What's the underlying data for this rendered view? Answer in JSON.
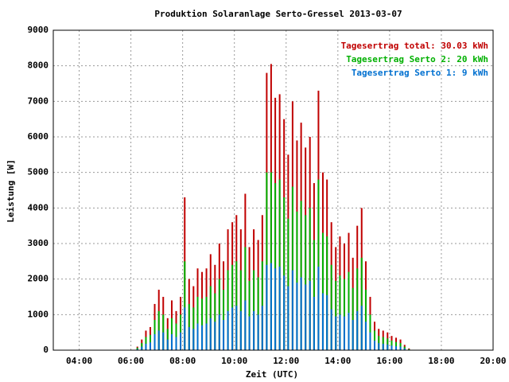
{
  "chart_data": {
    "type": "bar",
    "title": "Produktion Solaranlage Serto-Gressel 2013-03-07",
    "xlabel": "Zeit (UTC)",
    "ylabel": "Leistung [W]",
    "xlim": [
      3,
      20
    ],
    "ylim": [
      0,
      9000
    ],
    "xticks": [
      {
        "value": 4,
        "label": "04:00"
      },
      {
        "value": 6,
        "label": "06:00"
      },
      {
        "value": 8,
        "label": "08:00"
      },
      {
        "value": 10,
        "label": "10:00"
      },
      {
        "value": 12,
        "label": "12:00"
      },
      {
        "value": 14,
        "label": "14:00"
      },
      {
        "value": 16,
        "label": "16:00"
      },
      {
        "value": 18,
        "label": "18:00"
      },
      {
        "value": 20,
        "label": "20:00"
      }
    ],
    "yticks": [
      0,
      1000,
      2000,
      3000,
      4000,
      5000,
      6000,
      7000,
      8000,
      9000
    ],
    "grid": true,
    "legend": "top-right",
    "x": [
      6.25,
      6.42,
      6.58,
      6.75,
      6.92,
      7.08,
      7.25,
      7.42,
      7.58,
      7.75,
      7.92,
      8.08,
      8.25,
      8.42,
      8.58,
      8.75,
      8.92,
      9.08,
      9.25,
      9.42,
      9.58,
      9.75,
      9.92,
      10.08,
      10.25,
      10.42,
      10.58,
      10.75,
      10.92,
      11.08,
      11.25,
      11.42,
      11.58,
      11.75,
      11.92,
      12.08,
      12.25,
      12.42,
      12.58,
      12.75,
      12.92,
      13.08,
      13.25,
      13.42,
      13.58,
      13.75,
      13.92,
      14.08,
      14.25,
      14.42,
      14.58,
      14.75,
      14.92,
      15.08,
      15.25,
      15.42,
      15.58,
      15.75,
      15.92,
      16.08,
      16.25,
      16.42,
      16.58,
      16.75
    ],
    "series": [
      {
        "name": "Tagesertrag total: 30.03 kWh",
        "color": "#c00000",
        "values": [
          100,
          300,
          550,
          650,
          1300,
          1700,
          1500,
          900,
          1400,
          1100,
          1500,
          4300,
          2000,
          1800,
          2300,
          2200,
          2300,
          2700,
          2400,
          3000,
          2500,
          3400,
          3600,
          3800,
          3400,
          4400,
          2900,
          3400,
          3100,
          3800,
          7800,
          8050,
          7100,
          7200,
          6500,
          5500,
          7000,
          5900,
          6400,
          5700,
          6000,
          4700,
          7300,
          5000,
          4800,
          3600,
          2900,
          3200,
          3000,
          3300,
          2600,
          3500,
          4000,
          2500,
          1500,
          800,
          600,
          550,
          500,
          400,
          350,
          300,
          150,
          50
        ]
      },
      {
        "name": "Tagesertrag Serto 2: 20 kWh",
        "color": "#00b000",
        "values": [
          70,
          200,
          370,
          430,
          850,
          1100,
          1000,
          600,
          900,
          750,
          1000,
          2500,
          1300,
          1200,
          1500,
          1450,
          1500,
          1800,
          1600,
          2000,
          1700,
          2250,
          2400,
          2500,
          2250,
          2900,
          1950,
          2250,
          2050,
          2500,
          5000,
          5000,
          4700,
          4800,
          4300,
          3700,
          4600,
          3900,
          4200,
          3800,
          4000,
          3100,
          4800,
          3300,
          3200,
          2400,
          1950,
          2100,
          2000,
          2200,
          1750,
          2300,
          2600,
          1700,
          1000,
          550,
          400,
          370,
          330,
          270,
          230,
          200,
          100,
          30
        ]
      },
      {
        "name": "Tagesertrag Serto 1: 9 kWh",
        "color": "#0070d0",
        "values": [
          30,
          100,
          180,
          220,
          450,
          550,
          500,
          300,
          450,
          370,
          500,
          1200,
          650,
          600,
          750,
          700,
          750,
          900,
          800,
          1000,
          850,
          1100,
          1200,
          1250,
          1100,
          1400,
          950,
          1100,
          1000,
          1250,
          2400,
          2450,
          2300,
          2350,
          2100,
          1800,
          2250,
          1900,
          2050,
          1850,
          1950,
          1500,
          2350,
          1600,
          1550,
          1150,
          950,
          1000,
          950,
          1050,
          850,
          1100,
          1250,
          800,
          500,
          270,
          200,
          180,
          160,
          130,
          110,
          100,
          50,
          15
        ]
      }
    ]
  }
}
